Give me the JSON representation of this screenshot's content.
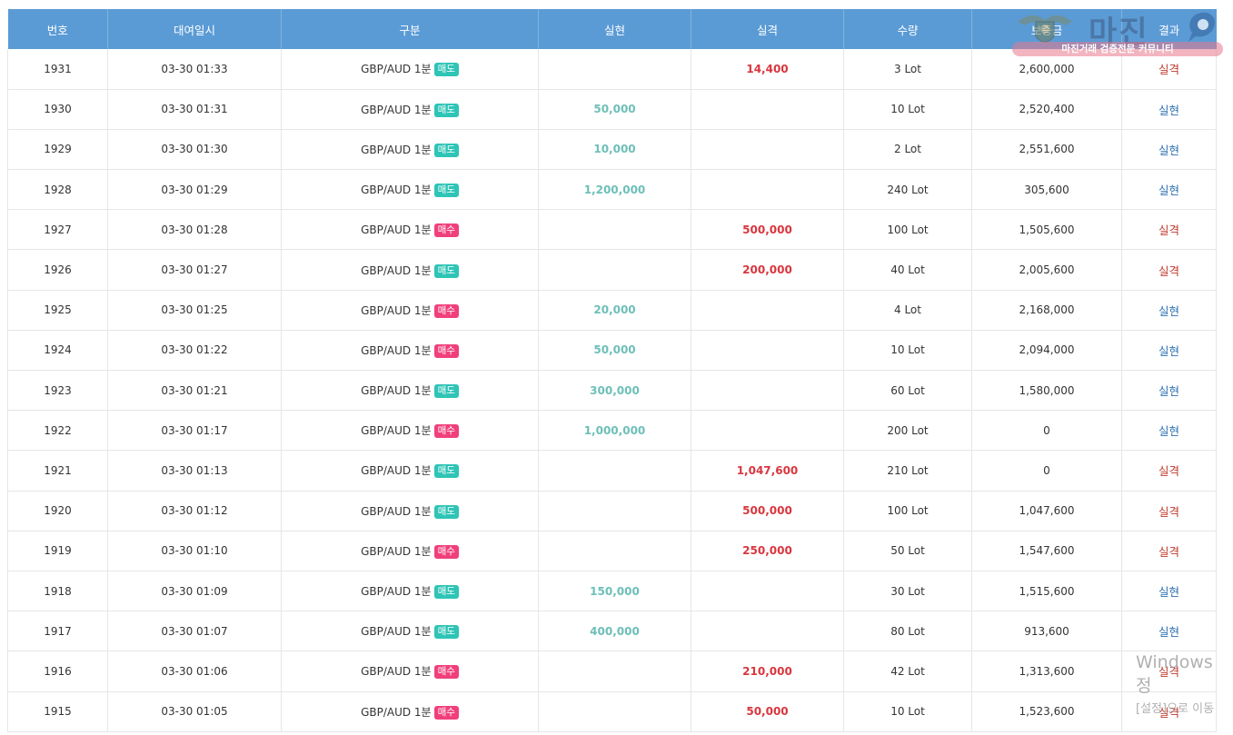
{
  "columns": [
    "번호",
    "대여일시",
    "구분",
    "실현",
    "실격",
    "수량",
    "보증금",
    "결과"
  ],
  "colors": {
    "header_bg": "#5b9bd5",
    "sell_badge": "#2ec4b6",
    "buy_badge": "#f0407c",
    "gain_text": "#6dbfb8",
    "loss_text": "#d9363e",
    "result_gain": "#2a6fb0",
    "result_loss": "#c0392b"
  },
  "rows": [
    {
      "no": "1931",
      "date": "03-30 01:33",
      "pair": "GBP/AUD 1분",
      "side": "매도",
      "gain": "",
      "loss": "14,400",
      "qty": "3 Lot",
      "deposit": "2,600,000",
      "result": "실격"
    },
    {
      "no": "1930",
      "date": "03-30 01:31",
      "pair": "GBP/AUD 1분",
      "side": "매도",
      "gain": "50,000",
      "loss": "",
      "qty": "10 Lot",
      "deposit": "2,520,400",
      "result": "실현"
    },
    {
      "no": "1929",
      "date": "03-30 01:30",
      "pair": "GBP/AUD 1분",
      "side": "매도",
      "gain": "10,000",
      "loss": "",
      "qty": "2 Lot",
      "deposit": "2,551,600",
      "result": "실현"
    },
    {
      "no": "1928",
      "date": "03-30 01:29",
      "pair": "GBP/AUD 1분",
      "side": "매도",
      "gain": "1,200,000",
      "loss": "",
      "qty": "240 Lot",
      "deposit": "305,600",
      "result": "실현"
    },
    {
      "no": "1927",
      "date": "03-30 01:28",
      "pair": "GBP/AUD 1분",
      "side": "매수",
      "gain": "",
      "loss": "500,000",
      "qty": "100 Lot",
      "deposit": "1,505,600",
      "result": "실격"
    },
    {
      "no": "1926",
      "date": "03-30 01:27",
      "pair": "GBP/AUD 1분",
      "side": "매도",
      "gain": "",
      "loss": "200,000",
      "qty": "40 Lot",
      "deposit": "2,005,600",
      "result": "실격"
    },
    {
      "no": "1925",
      "date": "03-30 01:25",
      "pair": "GBP/AUD 1분",
      "side": "매수",
      "gain": "20,000",
      "loss": "",
      "qty": "4 Lot",
      "deposit": "2,168,000",
      "result": "실현"
    },
    {
      "no": "1924",
      "date": "03-30 01:22",
      "pair": "GBP/AUD 1분",
      "side": "매수",
      "gain": "50,000",
      "loss": "",
      "qty": "10 Lot",
      "deposit": "2,094,000",
      "result": "실현"
    },
    {
      "no": "1923",
      "date": "03-30 01:21",
      "pair": "GBP/AUD 1분",
      "side": "매도",
      "gain": "300,000",
      "loss": "",
      "qty": "60 Lot",
      "deposit": "1,580,000",
      "result": "실현"
    },
    {
      "no": "1922",
      "date": "03-30 01:17",
      "pair": "GBP/AUD 1분",
      "side": "매수",
      "gain": "1,000,000",
      "loss": "",
      "qty": "200 Lot",
      "deposit": "0",
      "result": "실현"
    },
    {
      "no": "1921",
      "date": "03-30 01:13",
      "pair": "GBP/AUD 1분",
      "side": "매도",
      "gain": "",
      "loss": "1,047,600",
      "qty": "210 Lot",
      "deposit": "0",
      "result": "실격"
    },
    {
      "no": "1920",
      "date": "03-30 01:12",
      "pair": "GBP/AUD 1분",
      "side": "매도",
      "gain": "",
      "loss": "500,000",
      "qty": "100 Lot",
      "deposit": "1,047,600",
      "result": "실격"
    },
    {
      "no": "1919",
      "date": "03-30 01:10",
      "pair": "GBP/AUD 1분",
      "side": "매수",
      "gain": "",
      "loss": "250,000",
      "qty": "50 Lot",
      "deposit": "1,547,600",
      "result": "실격"
    },
    {
      "no": "1918",
      "date": "03-30 01:09",
      "pair": "GBP/AUD 1분",
      "side": "매도",
      "gain": "150,000",
      "loss": "",
      "qty": "30 Lot",
      "deposit": "1,515,600",
      "result": "실현"
    },
    {
      "no": "1917",
      "date": "03-30 01:07",
      "pair": "GBP/AUD 1분",
      "side": "매도",
      "gain": "400,000",
      "loss": "",
      "qty": "80 Lot",
      "deposit": "913,600",
      "result": "실현"
    },
    {
      "no": "1916",
      "date": "03-30 01:06",
      "pair": "GBP/AUD 1분",
      "side": "매수",
      "gain": "",
      "loss": "210,000",
      "qty": "42 Lot",
      "deposit": "1,313,600",
      "result": "실격"
    },
    {
      "no": "1915",
      "date": "03-30 01:05",
      "pair": "GBP/AUD 1분",
      "side": "매수",
      "gain": "",
      "loss": "50,000",
      "qty": "10 Lot",
      "deposit": "1,523,600",
      "result": "실격"
    }
  ],
  "watermark": {
    "logo_text": "마진",
    "logo_subtitle": "마진거래 검증전문 커뮤니티",
    "logo_icon": "shield-emblem-icon"
  },
  "windows_notice": {
    "line1": "Windows 정",
    "line2": "[설정]으로 이동"
  }
}
